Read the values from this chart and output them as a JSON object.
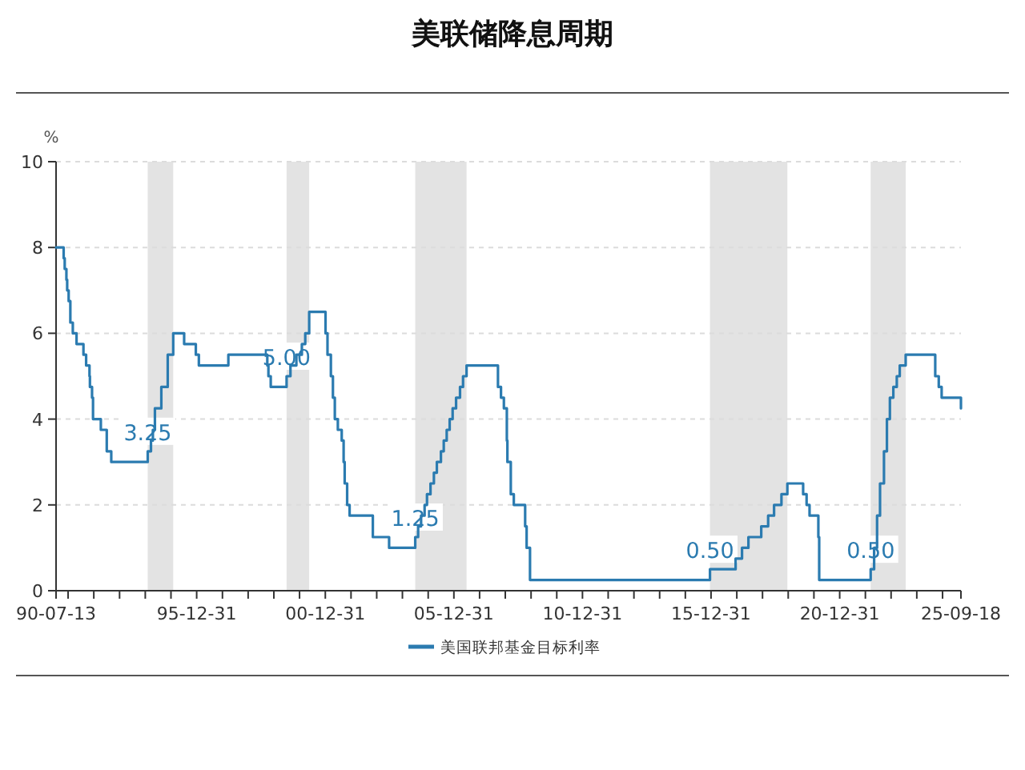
{
  "chart_data": {
    "type": "step",
    "title": "美联储降息周期",
    "ylabel": "%",
    "x": [
      "1990-07-13",
      "1990-10-29",
      "1990-11-13",
      "1990-12-07",
      "1990-12-18",
      "1991-01-08",
      "1991-02-01",
      "1991-03-08",
      "1991-04-30",
      "1991-08-06",
      "1991-09-13",
      "1991-10-31",
      "1991-11-06",
      "1991-12-06",
      "1991-12-20",
      "1992-04-09",
      "1992-07-02",
      "1992-09-04",
      "1994-02-04",
      "1994-03-22",
      "1994-04-18",
      "1994-05-17",
      "1994-08-16",
      "1994-11-15",
      "1995-02-01",
      "1995-07-06",
      "1995-12-19",
      "1996-01-31",
      "1997-03-25",
      "1998-09-29",
      "1998-10-15",
      "1998-11-17",
      "1999-06-30",
      "1999-08-24",
      "1999-11-16",
      "2000-02-02",
      "2000-03-21",
      "2000-05-16",
      "2001-01-03",
      "2001-01-31",
      "2001-03-20",
      "2001-04-18",
      "2001-05-15",
      "2001-06-27",
      "2001-08-21",
      "2001-09-17",
      "2001-10-02",
      "2001-11-06",
      "2001-12-11",
      "2002-11-06",
      "2003-06-25",
      "2004-06-30",
      "2004-08-10",
      "2004-09-21",
      "2004-11-10",
      "2004-12-14",
      "2005-02-02",
      "2005-03-22",
      "2005-05-03",
      "2005-06-30",
      "2005-08-09",
      "2005-09-20",
      "2005-11-01",
      "2005-12-13",
      "2006-01-31",
      "2006-03-28",
      "2006-05-10",
      "2006-06-29",
      "2007-09-18",
      "2007-10-31",
      "2007-12-11",
      "2008-01-22",
      "2008-01-30",
      "2008-03-18",
      "2008-04-30",
      "2008-10-08",
      "2008-10-29",
      "2008-12-16",
      "2015-12-16",
      "2016-12-14",
      "2017-03-15",
      "2017-06-14",
      "2017-12-13",
      "2018-03-21",
      "2018-06-13",
      "2018-09-26",
      "2018-12-19",
      "2019-07-31",
      "2019-09-18",
      "2019-10-30",
      "2020-03-03",
      "2020-03-15",
      "2022-03-16",
      "2022-05-04",
      "2022-06-15",
      "2022-07-27",
      "2022-09-21",
      "2022-11-02",
      "2022-12-14",
      "2023-02-01",
      "2023-03-22",
      "2023-05-03",
      "2023-07-26",
      "2024-09-18",
      "2024-11-07",
      "2024-12-18",
      "2025-09-18"
    ],
    "series": [
      {
        "name": "美国联邦基金目标利率",
        "color": "#2b7bb0",
        "values": [
          8.0,
          7.75,
          7.5,
          7.25,
          7.0,
          6.75,
          6.25,
          6.0,
          5.75,
          5.5,
          5.25,
          5.0,
          4.75,
          4.5,
          4.0,
          3.75,
          3.25,
          3.0,
          3.25,
          3.5,
          3.75,
          4.25,
          4.75,
          5.5,
          6.0,
          5.75,
          5.5,
          5.25,
          5.5,
          5.25,
          5.0,
          4.75,
          5.0,
          5.25,
          5.5,
          5.75,
          6.0,
          6.5,
          6.0,
          5.5,
          5.0,
          4.5,
          4.0,
          3.75,
          3.5,
          3.0,
          2.5,
          2.0,
          1.75,
          1.25,
          1.0,
          1.25,
          1.5,
          1.75,
          2.0,
          2.25,
          2.5,
          2.75,
          3.0,
          3.25,
          3.5,
          3.75,
          4.0,
          4.25,
          4.5,
          4.75,
          5.0,
          5.25,
          4.75,
          4.5,
          4.25,
          3.5,
          3.0,
          2.25,
          2.0,
          1.5,
          1.0,
          0.25,
          0.5,
          0.75,
          1.0,
          1.25,
          1.5,
          1.75,
          2.0,
          2.25,
          2.5,
          2.25,
          2.0,
          1.75,
          1.25,
          0.25,
          0.5,
          1.0,
          1.75,
          2.5,
          3.25,
          4.0,
          4.5,
          4.75,
          5.0,
          5.25,
          5.5,
          5.0,
          4.75,
          4.5,
          4.25
        ]
      }
    ],
    "xlim": [
      "1990-07-13",
      "2025-09-18"
    ],
    "xticks": [
      {
        "value": "1990-07-13",
        "label": "90-07-13"
      },
      {
        "value": "1990-12-31",
        "label": null
      },
      {
        "value": "1991-12-31",
        "label": null
      },
      {
        "value": "1992-12-31",
        "label": null
      },
      {
        "value": "1993-12-31",
        "label": null
      },
      {
        "value": "1994-12-31",
        "label": null
      },
      {
        "value": "1995-12-31",
        "label": "95-12-31"
      },
      {
        "value": "1996-12-31",
        "label": null
      },
      {
        "value": "1997-12-31",
        "label": null
      },
      {
        "value": "1998-12-31",
        "label": null
      },
      {
        "value": "1999-12-31",
        "label": null
      },
      {
        "value": "2000-12-31",
        "label": "00-12-31"
      },
      {
        "value": "2001-12-31",
        "label": null
      },
      {
        "value": "2002-12-31",
        "label": null
      },
      {
        "value": "2003-12-31",
        "label": null
      },
      {
        "value": "2004-12-31",
        "label": null
      },
      {
        "value": "2005-12-31",
        "label": "05-12-31"
      },
      {
        "value": "2006-12-31",
        "label": null
      },
      {
        "value": "2007-12-31",
        "label": null
      },
      {
        "value": "2008-12-31",
        "label": null
      },
      {
        "value": "2009-12-31",
        "label": null
      },
      {
        "value": "2010-12-31",
        "label": "10-12-31"
      },
      {
        "value": "2011-12-31",
        "label": null
      },
      {
        "value": "2012-12-31",
        "label": null
      },
      {
        "value": "2013-12-31",
        "label": null
      },
      {
        "value": "2014-12-31",
        "label": null
      },
      {
        "value": "2015-12-31",
        "label": "15-12-31"
      },
      {
        "value": "2016-12-31",
        "label": null
      },
      {
        "value": "2017-12-31",
        "label": null
      },
      {
        "value": "2018-12-31",
        "label": null
      },
      {
        "value": "2019-12-31",
        "label": null
      },
      {
        "value": "2020-12-31",
        "label": "20-12-31"
      },
      {
        "value": "2021-12-31",
        "label": null
      },
      {
        "value": "2022-12-31",
        "label": null
      },
      {
        "value": "2023-12-31",
        "label": null
      },
      {
        "value": "2024-12-31",
        "label": null
      },
      {
        "value": "2025-09-18",
        "label": "25-09-18"
      }
    ],
    "ylim": [
      0,
      10
    ],
    "yticks": [
      0,
      2,
      4,
      6,
      8,
      10
    ],
    "grid": "y",
    "legend": "bottom",
    "bands": [
      {
        "axis": "x",
        "from": "1994-02-04",
        "to": "1995-02-01",
        "color": "#e3e3e3"
      },
      {
        "axis": "x",
        "from": "1999-06-30",
        "to": "2000-05-16",
        "color": "#e3e3e3"
      },
      {
        "axis": "x",
        "from": "2004-06-30",
        "to": "2006-06-29",
        "color": "#e3e3e3"
      },
      {
        "axis": "x",
        "from": "2015-12-16",
        "to": "2018-12-19",
        "color": "#e3e3e3"
      },
      {
        "axis": "x",
        "from": "2022-03-16",
        "to": "2023-07-26",
        "color": "#e3e3e3"
      }
    ],
    "annotations": [
      {
        "text": "3.25",
        "x": "1994-02-04",
        "y": 3.25
      },
      {
        "text": "5.00",
        "x": "1999-06-30",
        "y": 5.0
      },
      {
        "text": "1.25",
        "x": "2004-06-30",
        "y": 1.25
      },
      {
        "text": "0.50",
        "x": "2015-12-16",
        "y": 0.5
      },
      {
        "text": "0.50",
        "x": "2022-03-16",
        "y": 0.5
      }
    ]
  }
}
